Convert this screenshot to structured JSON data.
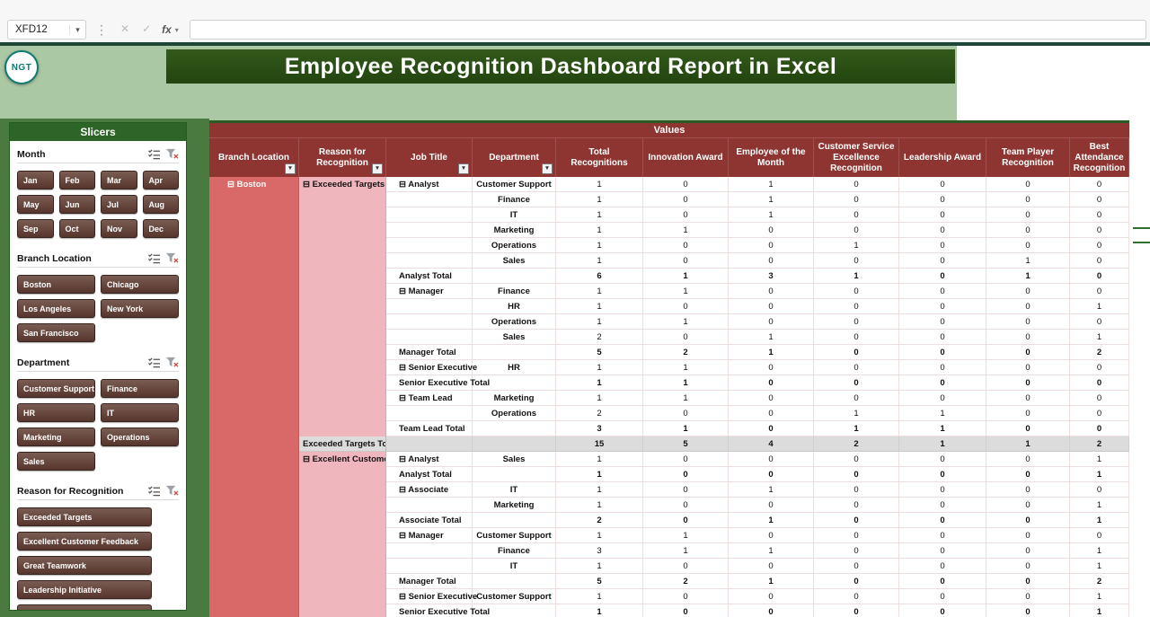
{
  "formula_bar": {
    "name_box": "XFD12",
    "fx_label": "fx",
    "formula_value": ""
  },
  "header": {
    "title": "Employee Recognition Dashboard Report in Excel",
    "logo_text": "NGT"
  },
  "slicers": {
    "panel_title": "Slicers",
    "groups": [
      {
        "title": "Month",
        "columns": 4,
        "items": [
          "Jan",
          "Feb",
          "Mar",
          "Apr",
          "May",
          "Jun",
          "Jul",
          "Aug",
          "Sep",
          "Oct",
          "Nov",
          "Dec"
        ]
      },
      {
        "title": "Branch Location",
        "columns": 2,
        "items": [
          "Boston",
          "Chicago",
          "Los Angeles",
          "New York",
          "San Francisco"
        ]
      },
      {
        "title": "Department",
        "columns": 2,
        "items": [
          "Customer Support",
          "Finance",
          "HR",
          "IT",
          "Marketing",
          "Operations",
          "Sales"
        ]
      },
      {
        "title": "Reason for Recognition",
        "columns": 1,
        "items": [
          "Exceeded Targets",
          "Excellent Customer Feedback",
          "Great Teamwork",
          "Leadership Initiative",
          ""
        ]
      }
    ]
  },
  "pivot": {
    "values_label": "Values",
    "columns": [
      "Branch Location",
      "Reason for Recognition",
      "Job Title",
      "Department",
      "Total Recognitions",
      "Innovation Award",
      "Employee of the Month",
      "Customer Service Excellence Recognition",
      "Leadership Award",
      "Team Player Recognition",
      "Best Attendance Recognition"
    ],
    "filter_columns": [
      0,
      1,
      2,
      3
    ],
    "rows": [
      {
        "branch": "⊟ Boston",
        "reason": "⊟ Exceeded Targets",
        "job": "⊟ Analyst",
        "dept": "Customer Support",
        "vals": [
          1,
          0,
          1,
          0,
          0,
          0,
          0
        ],
        "kind": "data"
      },
      {
        "dept": "Finance",
        "vals": [
          1,
          0,
          1,
          0,
          0,
          0,
          0
        ],
        "kind": "data"
      },
      {
        "dept": "IT",
        "vals": [
          1,
          0,
          1,
          0,
          0,
          0,
          0
        ],
        "kind": "data"
      },
      {
        "dept": "Marketing",
        "vals": [
          1,
          1,
          0,
          0,
          0,
          0,
          0
        ],
        "kind": "data"
      },
      {
        "dept": "Operations",
        "vals": [
          1,
          0,
          0,
          1,
          0,
          0,
          0
        ],
        "kind": "data"
      },
      {
        "dept": "Sales",
        "vals": [
          1,
          0,
          0,
          0,
          0,
          1,
          0
        ],
        "kind": "data"
      },
      {
        "job": "Analyst Total",
        "vals": [
          6,
          1,
          3,
          1,
          0,
          1,
          0
        ],
        "kind": "sub"
      },
      {
        "job": "⊟ Manager",
        "dept": "Finance",
        "vals": [
          1,
          1,
          0,
          0,
          0,
          0,
          0
        ],
        "kind": "data"
      },
      {
        "dept": "HR",
        "vals": [
          1,
          0,
          0,
          0,
          0,
          0,
          1
        ],
        "kind": "data"
      },
      {
        "dept": "Operations",
        "vals": [
          1,
          1,
          0,
          0,
          0,
          0,
          0
        ],
        "kind": "data"
      },
      {
        "dept": "Sales",
        "vals": [
          2,
          0,
          1,
          0,
          0,
          0,
          1
        ],
        "kind": "data"
      },
      {
        "job": "Manager Total",
        "vals": [
          5,
          2,
          1,
          0,
          0,
          0,
          2
        ],
        "kind": "sub"
      },
      {
        "job": "⊟ Senior Executive",
        "dept": "HR",
        "vals": [
          1,
          1,
          0,
          0,
          0,
          0,
          0
        ],
        "kind": "data"
      },
      {
        "job": "Senior Executive Total",
        "vals": [
          1,
          1,
          0,
          0,
          0,
          0,
          0
        ],
        "kind": "sub"
      },
      {
        "job": "⊟ Team Lead",
        "dept": "Marketing",
        "vals": [
          1,
          1,
          0,
          0,
          0,
          0,
          0
        ],
        "kind": "data"
      },
      {
        "dept": "Operations",
        "vals": [
          2,
          0,
          0,
          1,
          1,
          0,
          0
        ],
        "kind": "data"
      },
      {
        "job": "Team Lead Total",
        "vals": [
          3,
          1,
          0,
          1,
          1,
          0,
          0
        ],
        "kind": "sub"
      },
      {
        "reason": "Exceeded Targets Total",
        "vals": [
          15,
          5,
          4,
          2,
          1,
          1,
          2
        ],
        "kind": "grand"
      },
      {
        "reason": "⊟ Excellent Customer Feedback",
        "job": "⊟ Analyst",
        "dept": "Sales",
        "vals": [
          1,
          0,
          0,
          0,
          0,
          0,
          1
        ],
        "kind": "data"
      },
      {
        "job": "Analyst Total",
        "vals": [
          1,
          0,
          0,
          0,
          0,
          0,
          1
        ],
        "kind": "sub"
      },
      {
        "job": "⊟ Associate",
        "dept": "IT",
        "vals": [
          1,
          0,
          1,
          0,
          0,
          0,
          0
        ],
        "kind": "data"
      },
      {
        "dept": "Marketing",
        "vals": [
          1,
          0,
          0,
          0,
          0,
          0,
          1
        ],
        "kind": "data"
      },
      {
        "job": "Associate Total",
        "vals": [
          2,
          0,
          1,
          0,
          0,
          0,
          1
        ],
        "kind": "sub"
      },
      {
        "job": "⊟ Manager",
        "dept": "Customer Support",
        "vals": [
          1,
          1,
          0,
          0,
          0,
          0,
          0
        ],
        "kind": "data"
      },
      {
        "dept": "Finance",
        "vals": [
          3,
          1,
          1,
          0,
          0,
          0,
          1
        ],
        "kind": "data"
      },
      {
        "dept": "IT",
        "vals": [
          1,
          0,
          0,
          0,
          0,
          0,
          1
        ],
        "kind": "data"
      },
      {
        "job": "Manager Total",
        "vals": [
          5,
          2,
          1,
          0,
          0,
          0,
          2
        ],
        "kind": "sub"
      },
      {
        "job": "⊟ Senior Executive",
        "dept": "Customer Support",
        "vals": [
          1,
          0,
          0,
          0,
          0,
          0,
          1
        ],
        "kind": "data"
      },
      {
        "job": "Senior Executive Total",
        "vals": [
          1,
          0,
          0,
          0,
          0,
          0,
          1
        ],
        "kind": "sub"
      }
    ]
  },
  "colors": {
    "maroon": "#8e3431",
    "red": "#d96868",
    "pink": "#f0b6bd",
    "leftbg": "#4a7a40",
    "lightgreen": "#abc8a4",
    "panelgreen": "#2d6427",
    "banner": "#234410",
    "slicerbtn": "#55352c",
    "totalgray": "#dcdcdc",
    "divider": "#1c4636"
  }
}
